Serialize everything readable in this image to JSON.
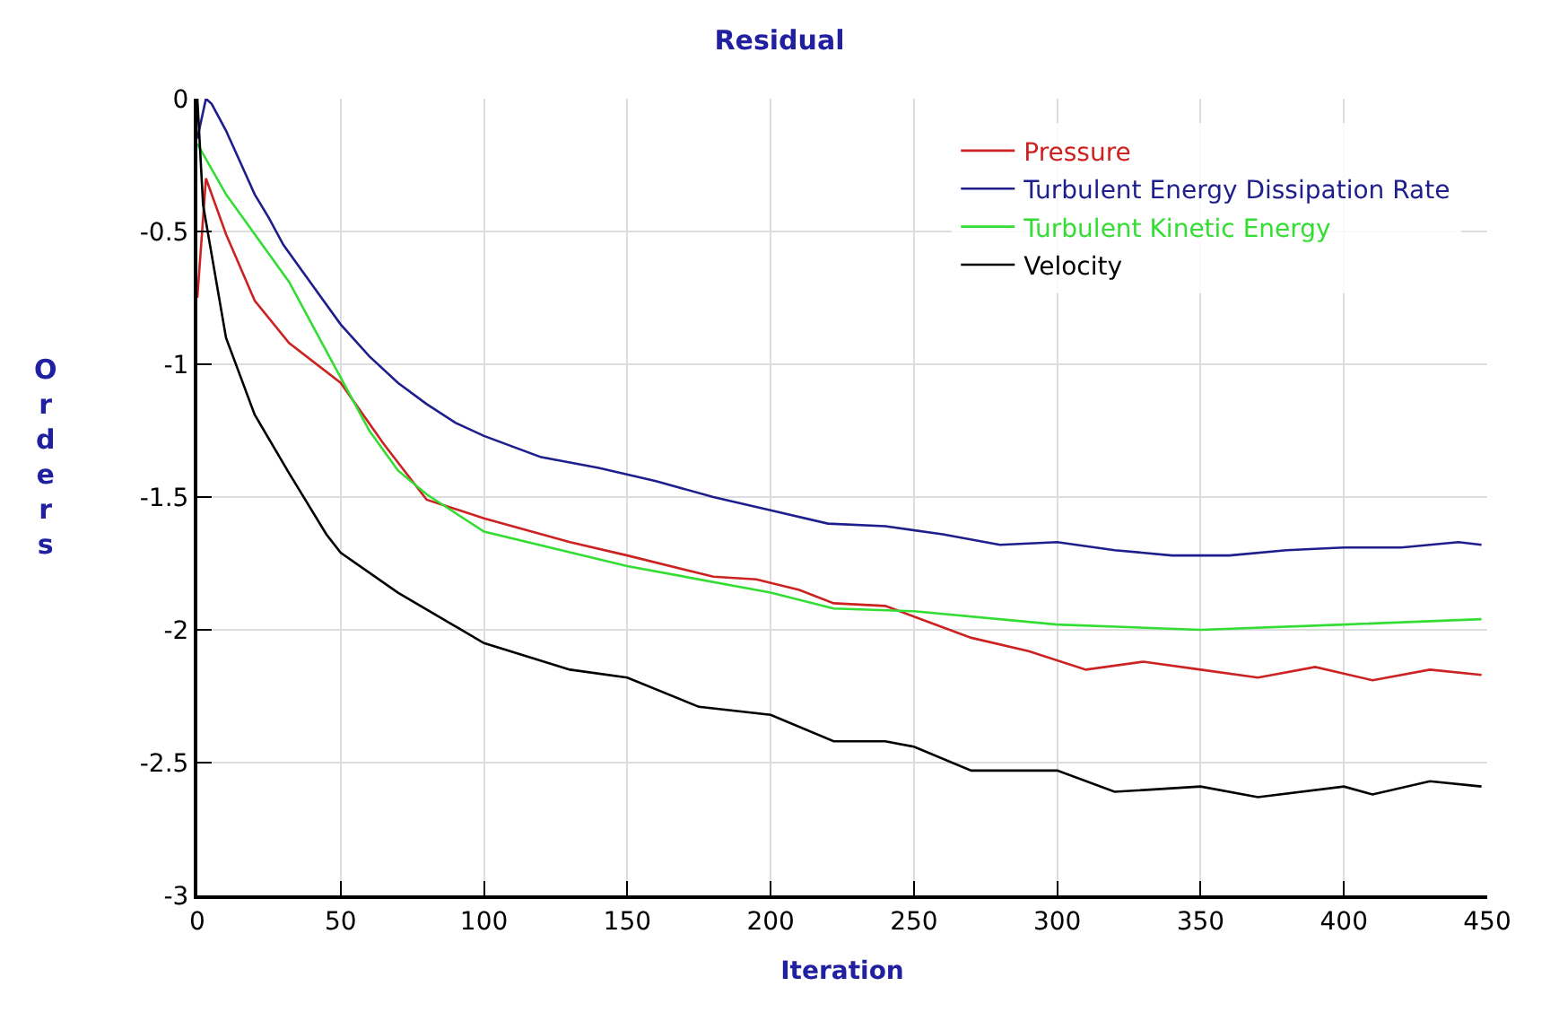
{
  "chart_data": {
    "type": "line",
    "title": "Residual",
    "xlabel": "Iteration",
    "ylabel": "Orders",
    "xlim": [
      0,
      450
    ],
    "xticks": [
      0,
      50,
      100,
      150,
      200,
      250,
      300,
      350,
      400,
      450
    ],
    "ylim": [
      -3,
      0
    ],
    "yticks": [
      -3,
      -2.5,
      -2,
      -1.5,
      -1,
      -0.5,
      0
    ],
    "grid": true,
    "legend": "top right",
    "marker": "none",
    "line_style": "solid",
    "series": [
      {
        "name": "Pressure",
        "color": "#cc2222",
        "x": [
          0,
          3,
          10,
          20,
          32,
          50,
          65,
          80,
          100,
          130,
          150,
          180,
          195,
          210,
          222,
          240,
          250,
          270,
          290,
          310,
          330,
          350,
          370,
          390,
          410,
          430,
          448
        ],
        "values": [
          -0.75,
          -0.3,
          -0.51,
          -0.76,
          -0.92,
          -1.07,
          -1.3,
          -1.51,
          -1.58,
          -1.67,
          -1.72,
          -1.8,
          -1.81,
          -1.85,
          -1.9,
          -1.91,
          -1.95,
          -2.03,
          -2.08,
          -2.15,
          -2.12,
          -2.15,
          -2.18,
          -2.14,
          -2.19,
          -2.15,
          -2.17
        ]
      },
      {
        "name": "Turbulent Energy Dissipation Rate",
        "color": "#1e1e8c",
        "x": [
          0,
          3,
          5,
          10,
          15,
          20,
          25,
          30,
          40,
          50,
          60,
          70,
          80,
          90,
          100,
          120,
          140,
          160,
          180,
          200,
          220,
          240,
          260,
          280,
          300,
          320,
          340,
          360,
          380,
          400,
          420,
          440,
          448
        ],
        "values": [
          -0.15,
          0.0,
          -0.02,
          -0.12,
          -0.24,
          -0.36,
          -0.45,
          -0.55,
          -0.7,
          -0.85,
          -0.97,
          -1.07,
          -1.15,
          -1.22,
          -1.27,
          -1.35,
          -1.39,
          -1.44,
          -1.5,
          -1.55,
          -1.6,
          -1.61,
          -1.64,
          -1.68,
          -1.67,
          -1.7,
          -1.72,
          -1.72,
          -1.7,
          -1.69,
          -1.69,
          -1.67,
          -1.68
        ]
      },
      {
        "name": "Turbulent Kinetic Energy",
        "color": "#33dd33",
        "x": [
          0,
          10,
          20,
          32,
          40,
          50,
          60,
          70,
          80,
          100,
          150,
          200,
          222,
          250,
          300,
          350,
          400,
          448
        ],
        "values": [
          -0.17,
          -0.36,
          -0.51,
          -0.69,
          -0.85,
          -1.05,
          -1.25,
          -1.4,
          -1.49,
          -1.63,
          -1.76,
          -1.86,
          -1.92,
          -1.93,
          -1.98,
          -2.0,
          -1.98,
          -1.96
        ]
      },
      {
        "name": "Velocity",
        "color": "#000000",
        "x": [
          0,
          2,
          10,
          20,
          32,
          45,
          50,
          70,
          100,
          130,
          150,
          175,
          200,
          222,
          240,
          250,
          270,
          300,
          320,
          350,
          370,
          400,
          410,
          430,
          448
        ],
        "values": [
          0.0,
          -0.4,
          -0.9,
          -1.19,
          -1.41,
          -1.64,
          -1.71,
          -1.86,
          -2.05,
          -2.15,
          -2.18,
          -2.29,
          -2.32,
          -2.42,
          -2.42,
          -2.44,
          -2.53,
          -2.53,
          -2.61,
          -2.59,
          -2.63,
          -2.59,
          -2.62,
          -2.57,
          -2.59
        ]
      }
    ]
  }
}
